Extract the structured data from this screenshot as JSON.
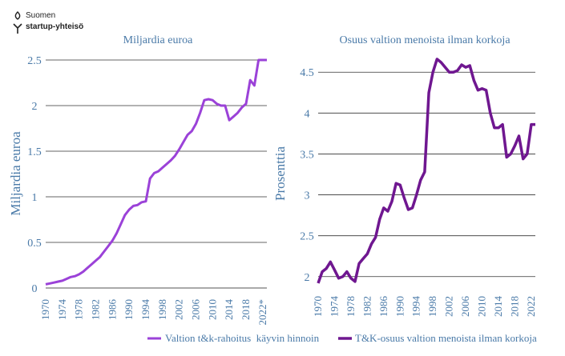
{
  "brand": {
    "line1": "Suomen",
    "line2": "startup-yhteisö"
  },
  "colors": {
    "axis_text": "#4a7aa8",
    "gridline": "#333333",
    "series_left": "#9b42d8",
    "series_right": "#6f1790"
  },
  "chart_data": [
    {
      "type": "line",
      "title": "Miljardia euroa",
      "ylabel": "Miljardia euroa",
      "xlabel": "",
      "ylim": [
        0,
        2.5
      ],
      "yticks": [
        "0",
        "0.5",
        "1",
        "1.5",
        "2",
        "2.5"
      ],
      "xticks": [
        "1970",
        "1974",
        "1978",
        "1982",
        "1986",
        "1990",
        "1994",
        "1998",
        "2002",
        "2006",
        "2010",
        "2014",
        "2018",
        "2022*"
      ],
      "xrange": [
        1970,
        2023
      ],
      "grid": true,
      "series": [
        {
          "name": "Valtion t&k-rahoitus  käyvin hinnoin",
          "x": [
            1970,
            1971,
            1972,
            1973,
            1974,
            1975,
            1976,
            1977,
            1978,
            1979,
            1980,
            1981,
            1982,
            1983,
            1984,
            1985,
            1986,
            1987,
            1988,
            1989,
            1990,
            1991,
            1992,
            1993,
            1994,
            1995,
            1996,
            1997,
            1998,
            1999,
            2000,
            2001,
            2002,
            2003,
            2004,
            2005,
            2006,
            2007,
            2008,
            2009,
            2010,
            2011,
            2012,
            2013,
            2014,
            2015,
            2016,
            2017,
            2018,
            2019,
            2020,
            2021,
            2022,
            2023
          ],
          "values": [
            0.04,
            0.05,
            0.06,
            0.07,
            0.08,
            0.1,
            0.12,
            0.13,
            0.15,
            0.18,
            0.22,
            0.26,
            0.3,
            0.34,
            0.4,
            0.46,
            0.52,
            0.6,
            0.7,
            0.8,
            0.86,
            0.9,
            0.91,
            0.94,
            0.95,
            1.2,
            1.26,
            1.28,
            1.32,
            1.36,
            1.4,
            1.45,
            1.52,
            1.6,
            1.68,
            1.72,
            1.8,
            1.92,
            2.06,
            2.07,
            2.06,
            2.02,
            2.0,
            2.0,
            1.84,
            1.88,
            1.92,
            1.98,
            2.02,
            2.28,
            2.22,
            2.5,
            2.5,
            2.5
          ]
        }
      ]
    },
    {
      "type": "line",
      "title": "Osuus valtion menoista ilman korkoja",
      "ylabel": "Prosenttia",
      "xlabel": "",
      "ylim": [
        1.9,
        4.6
      ],
      "yticks": [
        "2",
        "2.5",
        "3",
        "3.5",
        "4",
        "4.5"
      ],
      "xticks": [
        "1970",
        "1974",
        "1978",
        "1982",
        "1986",
        "1990",
        "1994",
        "1998",
        "2002",
        "2006",
        "2010",
        "2014",
        "2018",
        "2022"
      ],
      "xrange": [
        1970,
        2023
      ],
      "grid": true,
      "series": [
        {
          "name": "T&K-osuus valtion menoista ilman korkoja",
          "x": [
            1970,
            1971,
            1972,
            1973,
            1974,
            1975,
            1976,
            1977,
            1978,
            1979,
            1980,
            1981,
            1982,
            1983,
            1984,
            1985,
            1986,
            1987,
            1988,
            1989,
            1990,
            1991,
            1992,
            1993,
            1994,
            1995,
            1996,
            1997,
            1998,
            1999,
            2000,
            2001,
            2002,
            2003,
            2004,
            2005,
            2006,
            2007,
            2008,
            2009,
            2010,
            2011,
            2012,
            2013,
            2014,
            2015,
            2016,
            2017,
            2018,
            2019,
            2020,
            2021,
            2022,
            2023
          ],
          "values": [
            1.92,
            2.06,
            2.1,
            2.18,
            2.08,
            1.98,
            2.0,
            2.06,
            1.98,
            1.94,
            2.16,
            2.22,
            2.28,
            2.4,
            2.48,
            2.7,
            2.84,
            2.8,
            2.92,
            3.14,
            3.12,
            2.96,
            2.82,
            2.84,
            3.0,
            3.18,
            3.28,
            4.25,
            4.5,
            4.66,
            4.62,
            4.56,
            4.5,
            4.5,
            4.52,
            4.59,
            4.56,
            4.58,
            4.4,
            4.28,
            4.3,
            4.28,
            4.0,
            3.82,
            3.82,
            3.86,
            3.46,
            3.5,
            3.6,
            3.72,
            3.44,
            3.5,
            3.86,
            3.86
          ]
        }
      ]
    }
  ],
  "legend": {
    "placement": "bottom"
  }
}
